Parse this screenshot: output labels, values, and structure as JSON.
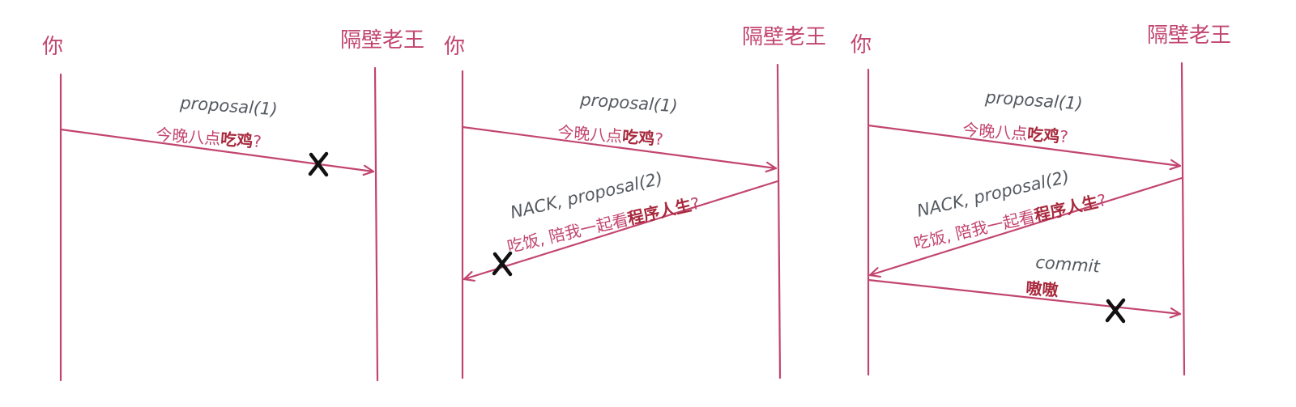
{
  "colors": {
    "primary": "#c2456e",
    "emphasis": "#a8283c",
    "gray_text": "#555a60",
    "lost_mark": "#111111"
  },
  "actors": {
    "left": "你",
    "right": "隔壁老王"
  },
  "panels": [
    {
      "messages": [
        {
          "direction": "right",
          "label_en": "proposal(1)",
          "label_zh_plain": "今晚八点",
          "label_zh_emph": "吃鸡",
          "label_zh_tail": "?",
          "lost": true
        }
      ]
    },
    {
      "messages": [
        {
          "direction": "right",
          "label_en": "proposal(1)",
          "label_zh_plain": "今晚八点",
          "label_zh_emph": "吃鸡",
          "label_zh_tail": "?",
          "lost": false
        },
        {
          "direction": "left",
          "label_en": "NACK, proposal(2)",
          "label_zh_plain": "吃饭, 陪我一起看",
          "label_zh_emph": "程序人生",
          "label_zh_tail": "?",
          "lost": true
        }
      ]
    },
    {
      "messages": [
        {
          "direction": "right",
          "label_en": "proposal(1)",
          "label_zh_plain": "今晚八点",
          "label_zh_emph": "吃鸡",
          "label_zh_tail": "?",
          "lost": false
        },
        {
          "direction": "left",
          "label_en": "NACK, proposal(2)",
          "label_zh_plain": "吃饭, 陪我一起看",
          "label_zh_emph": "程序人生",
          "label_zh_tail": "?",
          "lost": false
        },
        {
          "direction": "right",
          "label_en": "commit",
          "label_zh_plain": "",
          "label_zh_emph": "嗷嗷",
          "label_zh_tail": "",
          "lost": true
        }
      ]
    }
  ]
}
